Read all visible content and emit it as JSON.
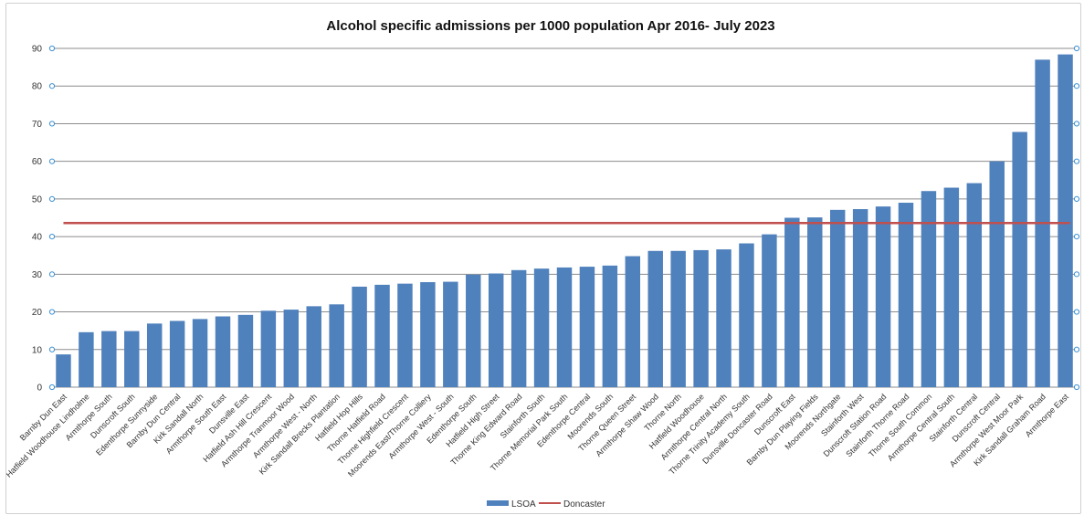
{
  "chart_data": {
    "type": "bar",
    "title": "Alcohol specific admissions per 1000 population Apr 2016- July 2023",
    "ylim": [
      0,
      90
    ],
    "yticks": [
      0,
      10,
      20,
      30,
      40,
      50,
      60,
      70,
      80,
      90
    ],
    "grid": true,
    "legend_position": "bottom",
    "categories": [
      "Barnby Dun East",
      "Hatfield Woodhouse Lindholme",
      "Armthorpe South",
      "Dunscroft South",
      "Edenthorpe Sunnyside",
      "Barnby Dun Central",
      "Kirk Sandall North",
      "Armthorpe South East",
      "Dunsville East",
      "Hatfield Ash Hill Crescent",
      "Armthorpe Tranmoor Wood",
      "Armthorpe West - North",
      "Kirk Sandall Brecks Plantation",
      "Hatfield Hop Hills",
      "Thorne Hatfield Road",
      "Thorne Highfield Crescent",
      "Moorends East/Thorne Colliery",
      "Armthorpe West - South",
      "Edenthorpe South",
      "Hatfield High Street",
      "Thorne King Edward Road",
      "Stainforth South",
      "Thorne Memorial Park South",
      "Edenthorpe Central",
      "Moorends South",
      "Thorne Queen Street",
      "Armthorpe Shaw Wood",
      "Thorne North",
      "Hatfield Woodhouse",
      "Armthorpe Central North",
      "Thorne Trinity Academy South",
      "Dunsville Doncaster Road",
      "Dunscroft East",
      "Barnby Dun Playing Fields",
      "Moorends Northgate",
      "Stainforth West",
      "Dunscroft Station Road",
      "Stainforth Thorne Road",
      "Thorne South Common",
      "Armthorpe Central South",
      "Stainforth Central",
      "Dunscroft Central",
      "Armthorpe West Moor Park",
      "Kirk Sandall Graham Road",
      "Armthorpe East"
    ],
    "series": [
      {
        "name": "LSOA",
        "kind": "bar",
        "color": "#4f81bd",
        "values": [
          8.7,
          14.6,
          14.9,
          14.9,
          16.9,
          17.6,
          18.1,
          18.8,
          19.2,
          20.3,
          20.6,
          21.5,
          22.0,
          26.7,
          27.2,
          27.5,
          27.9,
          28.0,
          29.9,
          30.2,
          31.1,
          31.5,
          31.8,
          32.0,
          32.3,
          34.8,
          36.2,
          36.2,
          36.4,
          36.6,
          38.2,
          40.6,
          45.0,
          45.1,
          47.1,
          47.3,
          48.0,
          49.0,
          52.1,
          53.0,
          54.2,
          60.0,
          67.8,
          87.0,
          88.4
        ]
      },
      {
        "name": "Doncaster",
        "kind": "line",
        "color": "#c0504d",
        "value": 43.6
      }
    ]
  }
}
